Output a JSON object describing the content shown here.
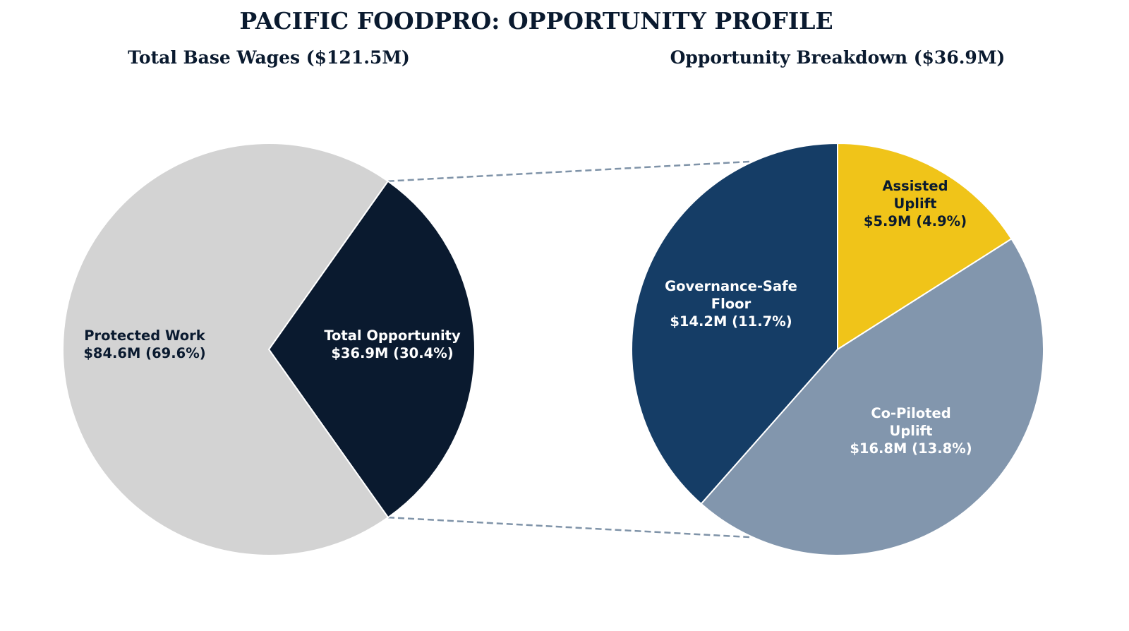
{
  "chart_data": [
    {
      "type": "pie",
      "title": "PACIFIC FOODPRO: OPPORTUNITY PROFILE",
      "subtitle": "Total Base Wages ($121.5M)",
      "start_angle_deg": 54.7,
      "direction": "clockwise",
      "slices": [
        {
          "key": "total_opportunity",
          "label_lines": [
            "Total Opportunity",
            "$36.9M (30.4%)"
          ],
          "value": 36.9,
          "percent": 30.4,
          "color": "#0a1a2f",
          "text_color": "#ffffff"
        },
        {
          "key": "protected",
          "label_lines": [
            "Protected Work",
            "$84.6M (69.6%)"
          ],
          "value": 84.6,
          "percent": 69.6,
          "color": "#d3d3d3",
          "text_color": "#0a1a2f"
        }
      ]
    },
    {
      "type": "pie",
      "subtitle": "Opportunity Breakdown ($36.9M)",
      "start_angle_deg": 90,
      "direction": "clockwise",
      "slices": [
        {
          "key": "assisted",
          "label_lines": [
            "Assisted",
            "Uplift",
            "$5.9M (4.9%)"
          ],
          "value": 5.9,
          "percent": 4.9,
          "color": "#f0c419",
          "text_color": "#0a1a2f"
        },
        {
          "key": "copiloted",
          "label_lines": [
            "Co-Piloted",
            "Uplift",
            "$16.8M (13.8%)"
          ],
          "value": 16.8,
          "percent": 13.8,
          "color": "#8296ad",
          "text_color": "#ffffff"
        },
        {
          "key": "governance",
          "label_lines": [
            "Governance-Safe",
            "Floor",
            "$14.2M (11.7%)"
          ],
          "value": 14.2,
          "percent": 11.7,
          "color": "#153d66",
          "text_color": "#ffffff"
        }
      ]
    }
  ],
  "connector_color": "#7f93a8"
}
